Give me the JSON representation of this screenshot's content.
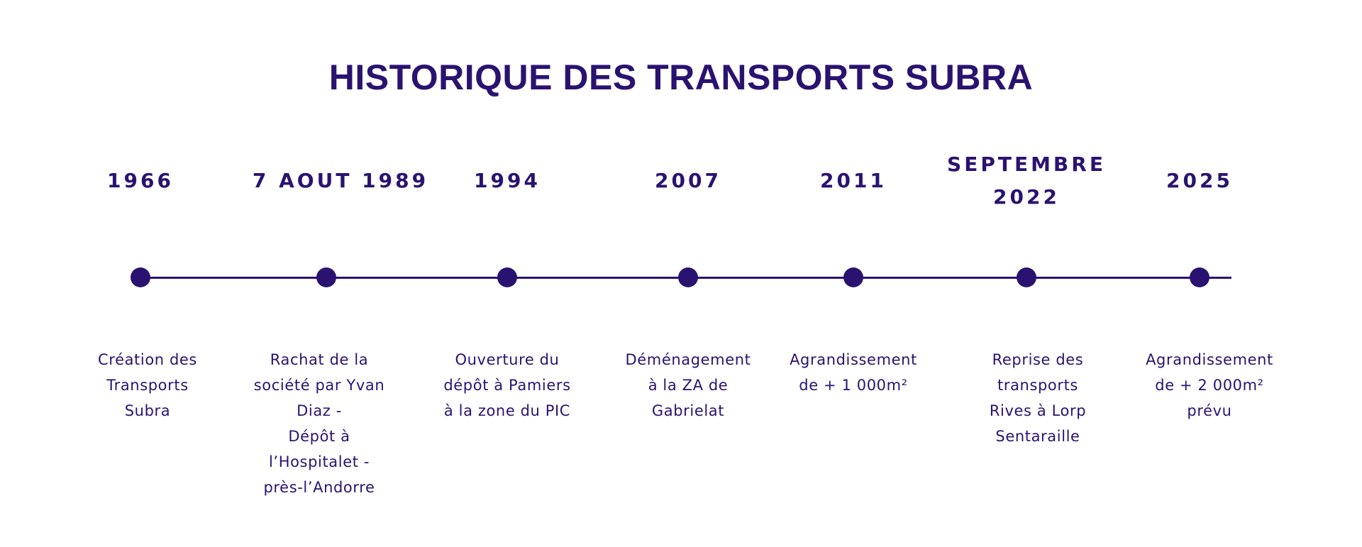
{
  "title": "HISTORIQUE DES TRANSPORTS SUBRA",
  "colors": {
    "primary": "#2a1370",
    "background": "#ffffff"
  },
  "events": [
    {
      "date": "1966",
      "description": "Création des\nTransports\nSubra"
    },
    {
      "date": "7 AOUT 1989",
      "description": "Rachat de  la\nsociété par Yvan\nDiaz -\nDépôt à\nl’Hospitalet -\nprès-l’Andorre"
    },
    {
      "date": "1994",
      "description": "Ouverture du\ndépôt à Pamiers\nà la zone du PIC"
    },
    {
      "date": "2007",
      "description": "Déménagement\nà la ZA de\nGabrielat"
    },
    {
      "date": "2011",
      "description": "Agrandissement\nde + 1 000m²"
    },
    {
      "date": "SEPTEMBRE\n2022",
      "description": "Reprise des\ntransports\nRives à Lorp\nSentaraille"
    },
    {
      "date": "2025",
      "description": "Agrandissement\nde + 2 000m²\nprévu"
    }
  ]
}
